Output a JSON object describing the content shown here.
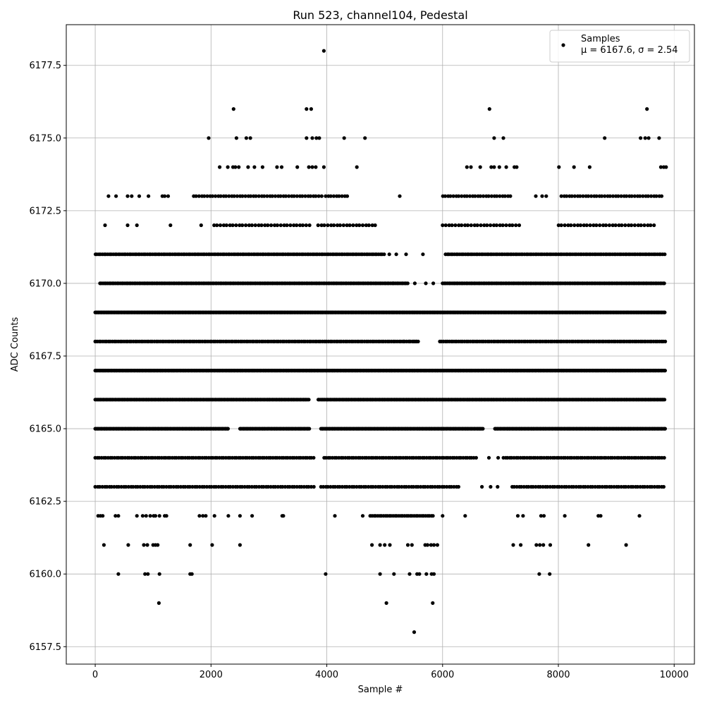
{
  "chart_data": {
    "type": "scatter",
    "title": "Run 523, channel104, Pedestal",
    "xlabel": "Sample #",
    "ylabel": "ADC Counts",
    "xlim": [
      -500,
      10350
    ],
    "ylim": [
      6156.9,
      6178.9
    ],
    "xticks": [
      0,
      2000,
      4000,
      6000,
      8000,
      10000
    ],
    "xtick_labels": [
      "0",
      "2000",
      "4000",
      "6000",
      "8000",
      "10000"
    ],
    "yticks": [
      6157.5,
      6160.0,
      6162.5,
      6165.0,
      6167.5,
      6170.0,
      6172.5,
      6175.0,
      6177.5
    ],
    "ytick_labels": [
      "6157.5",
      "6160.0",
      "6162.5",
      "6165.0",
      "6167.5",
      "6170.0",
      "6172.5",
      "6175.0",
      "6177.5"
    ],
    "grid": true,
    "legend": {
      "position": "top-right",
      "entries": [
        {
          "label": "Samples",
          "stats": "μ = 6167.6, σ = 2.54"
        }
      ]
    },
    "series": [
      {
        "name": "Samples",
        "color": "#000000",
        "marker": "circle",
        "summary": {
          "mean": 6167.6,
          "sigma": 2.54,
          "n_samples": 10000
        },
        "levels": [
          {
            "y": 6165,
            "ranges": [
              [
                0,
                2300
              ],
              [
                2500,
                3700
              ],
              [
                3900,
                6700
              ],
              [
                6900,
                9850
              ]
            ],
            "step": 19
          },
          {
            "y": 6166,
            "ranges": [
              [
                0,
                3700
              ],
              [
                3850,
                9850
              ]
            ],
            "step": 19
          },
          {
            "y": 6167,
            "ranges": [
              [
                0,
                9850
              ]
            ],
            "step": 18
          },
          {
            "y": 6169,
            "ranges": [
              [
                0,
                9850
              ]
            ],
            "step": 16
          },
          {
            "y": 6170,
            "ranges": [
              [
                80,
                5400
              ],
              [
                6000,
                9850
              ]
            ],
            "step": 27
          },
          {
            "y": 6171,
            "ranges": [
              [
                0,
                5000
              ],
              [
                6050,
                9850
              ]
            ],
            "step": 31
          },
          {
            "y": 6168,
            "ranges": [
              [
                0,
                5600
              ],
              [
                5950,
                9850
              ]
            ],
            "step": 33
          },
          {
            "y": 6164,
            "ranges": [
              [
                0,
                3800
              ],
              [
                3950,
                6600
              ],
              [
                7050,
                9850
              ]
            ],
            "step": 37
          },
          {
            "y": 6163,
            "ranges": [
              [
                0,
                3800
              ],
              [
                3900,
                6300
              ],
              [
                7200,
                9850
              ]
            ],
            "step": 41
          },
          {
            "y": 6173,
            "ranges": [
              [
                1700,
                3950
              ],
              [
                3980,
                4400
              ],
              [
                6000,
                7200
              ],
              [
                8050,
                9800
              ]
            ],
            "step": 47
          },
          {
            "y": 6172,
            "ranges": [
              [
                2050,
                3750
              ],
              [
                3850,
                4850
              ],
              [
                6000,
                7350
              ],
              [
                8000,
                9700
              ]
            ],
            "step": 55
          },
          {
            "y": 6162,
            "ranges": [
              [
                4750,
                5850
              ]
            ],
            "step": 33
          }
        ],
        "points": [
          [
            3950,
            6178
          ],
          [
            2390,
            6176
          ],
          [
            3650,
            6176
          ],
          [
            3730,
            6176
          ],
          [
            6810,
            6176
          ],
          [
            9530,
            6176
          ],
          [
            1960,
            6175
          ],
          [
            2440,
            6175
          ],
          [
            2610,
            6175
          ],
          [
            2680,
            6175
          ],
          [
            3650,
            6175
          ],
          [
            3750,
            6175
          ],
          [
            3820,
            6175
          ],
          [
            3870,
            6175
          ],
          [
            4300,
            6175
          ],
          [
            4660,
            6175
          ],
          [
            6890,
            6175
          ],
          [
            7050,
            6175
          ],
          [
            8800,
            6175
          ],
          [
            9420,
            6175
          ],
          [
            9500,
            6175
          ],
          [
            9560,
            6175
          ],
          [
            9740,
            6175
          ],
          [
            2150,
            6174
          ],
          [
            2290,
            6174
          ],
          [
            2380,
            6174
          ],
          [
            2420,
            6174
          ],
          [
            2480,
            6174
          ],
          [
            2640,
            6174
          ],
          [
            2750,
            6174
          ],
          [
            2890,
            6174
          ],
          [
            3140,
            6174
          ],
          [
            3220,
            6174
          ],
          [
            3490,
            6174
          ],
          [
            3690,
            6174
          ],
          [
            3750,
            6174
          ],
          [
            3810,
            6174
          ],
          [
            3950,
            6174
          ],
          [
            4520,
            6174
          ],
          [
            6420,
            6174
          ],
          [
            6490,
            6174
          ],
          [
            6650,
            6174
          ],
          [
            6840,
            6174
          ],
          [
            6890,
            6174
          ],
          [
            6980,
            6174
          ],
          [
            7100,
            6174
          ],
          [
            7240,
            6174
          ],
          [
            7280,
            6174
          ],
          [
            8010,
            6174
          ],
          [
            8270,
            6174
          ],
          [
            8540,
            6174
          ],
          [
            9770,
            6174
          ],
          [
            9820,
            6174
          ],
          [
            9860,
            6174
          ],
          [
            230,
            6173
          ],
          [
            360,
            6173
          ],
          [
            560,
            6173
          ],
          [
            630,
            6173
          ],
          [
            760,
            6173
          ],
          [
            920,
            6173
          ],
          [
            1160,
            6173
          ],
          [
            1200,
            6173
          ],
          [
            1260,
            6173
          ],
          [
            5260,
            6173
          ],
          [
            7610,
            6173
          ],
          [
            7720,
            6173
          ],
          [
            7790,
            6173
          ],
          [
            170,
            6172
          ],
          [
            560,
            6172
          ],
          [
            720,
            6172
          ],
          [
            1300,
            6172
          ],
          [
            1830,
            6172
          ],
          [
            5660,
            6171
          ],
          [
            5370,
            6171
          ],
          [
            5200,
            6171
          ],
          [
            5080,
            6171
          ],
          [
            5520,
            6170
          ],
          [
            5710,
            6170
          ],
          [
            5840,
            6170
          ],
          [
            5150,
            6170
          ],
          [
            5330,
            6168
          ],
          [
            5430,
            6168
          ],
          [
            5500,
            6168
          ],
          [
            5550,
            6168
          ],
          [
            6800,
            6164
          ],
          [
            6960,
            6164
          ],
          [
            6950,
            6163
          ],
          [
            6830,
            6163
          ],
          [
            6680,
            6163
          ],
          [
            50,
            6162
          ],
          [
            90,
            6162
          ],
          [
            130,
            6162
          ],
          [
            350,
            6162
          ],
          [
            400,
            6162
          ],
          [
            720,
            6162
          ],
          [
            820,
            6162
          ],
          [
            880,
            6162
          ],
          [
            950,
            6162
          ],
          [
            1010,
            6162
          ],
          [
            1040,
            6162
          ],
          [
            1110,
            6162
          ],
          [
            1200,
            6162
          ],
          [
            1230,
            6162
          ],
          [
            1800,
            6162
          ],
          [
            1860,
            6162
          ],
          [
            1910,
            6162
          ],
          [
            2060,
            6162
          ],
          [
            2300,
            6162
          ],
          [
            2500,
            6162
          ],
          [
            2710,
            6162
          ],
          [
            3230,
            6162
          ],
          [
            3250,
            6162
          ],
          [
            4140,
            6162
          ],
          [
            4620,
            6162
          ],
          [
            6390,
            6162
          ],
          [
            7300,
            6162
          ],
          [
            7390,
            6162
          ],
          [
            7700,
            6162
          ],
          [
            7750,
            6162
          ],
          [
            8110,
            6162
          ],
          [
            8690,
            6162
          ],
          [
            8730,
            6162
          ],
          [
            9400,
            6162
          ],
          [
            6000,
            6162
          ],
          [
            150,
            6161
          ],
          [
            570,
            6161
          ],
          [
            840,
            6161
          ],
          [
            900,
            6161
          ],
          [
            1000,
            6161
          ],
          [
            1040,
            6161
          ],
          [
            1080,
            6161
          ],
          [
            1640,
            6161
          ],
          [
            2020,
            6161
          ],
          [
            2500,
            6161
          ],
          [
            4780,
            6161
          ],
          [
            4920,
            6161
          ],
          [
            5000,
            6161
          ],
          [
            5090,
            6161
          ],
          [
            5400,
            6161
          ],
          [
            5470,
            6161
          ],
          [
            5700,
            6161
          ],
          [
            5740,
            6161
          ],
          [
            5800,
            6161
          ],
          [
            5850,
            6161
          ],
          [
            5910,
            6161
          ],
          [
            7220,
            6161
          ],
          [
            7350,
            6161
          ],
          [
            7620,
            6161
          ],
          [
            7680,
            6161
          ],
          [
            7740,
            6161
          ],
          [
            7860,
            6161
          ],
          [
            8520,
            6161
          ],
          [
            9170,
            6161
          ],
          [
            400,
            6160
          ],
          [
            860,
            6160
          ],
          [
            910,
            6160
          ],
          [
            1110,
            6160
          ],
          [
            1640,
            6160
          ],
          [
            1670,
            6160
          ],
          [
            3980,
            6160
          ],
          [
            4920,
            6160
          ],
          [
            5160,
            6160
          ],
          [
            5430,
            6160
          ],
          [
            5560,
            6160
          ],
          [
            5600,
            6160
          ],
          [
            5720,
            6160
          ],
          [
            5810,
            6160
          ],
          [
            5850,
            6160
          ],
          [
            7670,
            6160
          ],
          [
            7850,
            6160
          ],
          [
            1100,
            6159
          ],
          [
            5030,
            6159
          ],
          [
            5830,
            6159
          ],
          [
            5510,
            6158
          ]
        ]
      }
    ]
  }
}
